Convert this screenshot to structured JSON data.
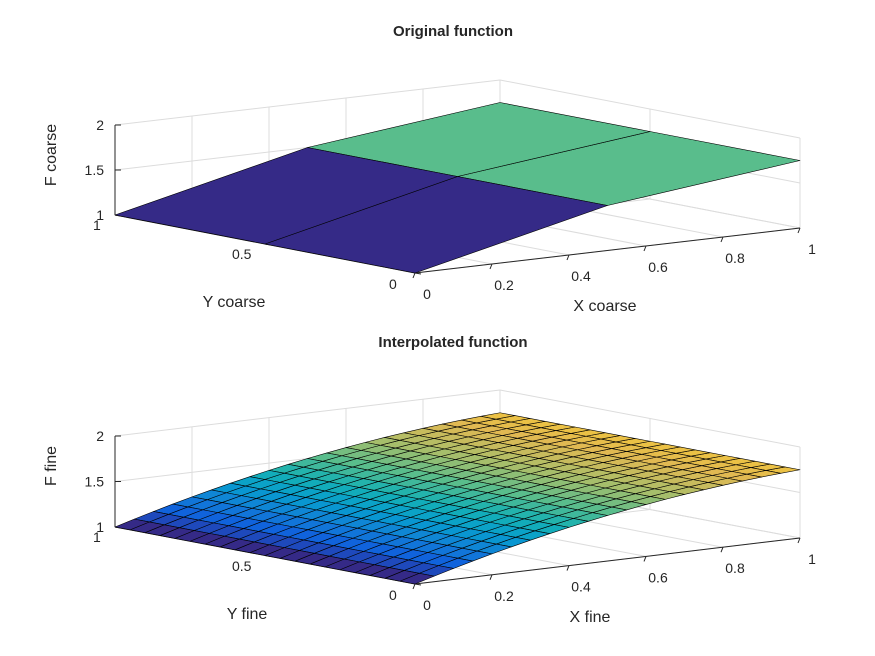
{
  "chart_data": [
    {
      "type": "surface",
      "title": "Original function",
      "xlabel": "X coarse",
      "ylabel": "Y coarse",
      "zlabel": "F coarse",
      "x": [
        0,
        0.5,
        1
      ],
      "y": [
        0,
        0.5,
        1
      ],
      "z": [
        [
          1,
          1.5,
          1.75
        ],
        [
          1,
          1.5,
          1.75
        ],
        [
          1,
          1.5,
          1.75
        ]
      ],
      "xlim": [
        0,
        1
      ],
      "ylim": [
        0,
        1
      ],
      "zlim": [
        1,
        2
      ],
      "xticks": [
        "0",
        "0.2",
        "0.4",
        "0.6",
        "0.8",
        "1"
      ],
      "yticks": [
        "0",
        "0.5",
        "1"
      ],
      "zticks": [
        "1",
        "1.5",
        "2"
      ],
      "colormap": "parula",
      "edge_color": "#000000",
      "grid": true,
      "box": false
    },
    {
      "type": "surface",
      "title": "Interpolated function",
      "xlabel": "X fine",
      "ylabel": "Y fine",
      "zlabel": "F fine",
      "x_range": [
        0,
        1
      ],
      "x_count": 21,
      "y_range": [
        0,
        1
      ],
      "y_count": 21,
      "interpolation_of": "Original function",
      "xlim": [
        0,
        1
      ],
      "ylim": [
        0,
        1
      ],
      "zlim": [
        1,
        2
      ],
      "xticks": [
        "0",
        "0.2",
        "0.4",
        "0.6",
        "0.8",
        "1"
      ],
      "yticks": [
        "0",
        "0.5",
        "1"
      ],
      "zticks": [
        "1",
        "1.5",
        "2"
      ],
      "colormap": "parula",
      "edge_color": "#000000",
      "grid": true,
      "box": false
    }
  ]
}
